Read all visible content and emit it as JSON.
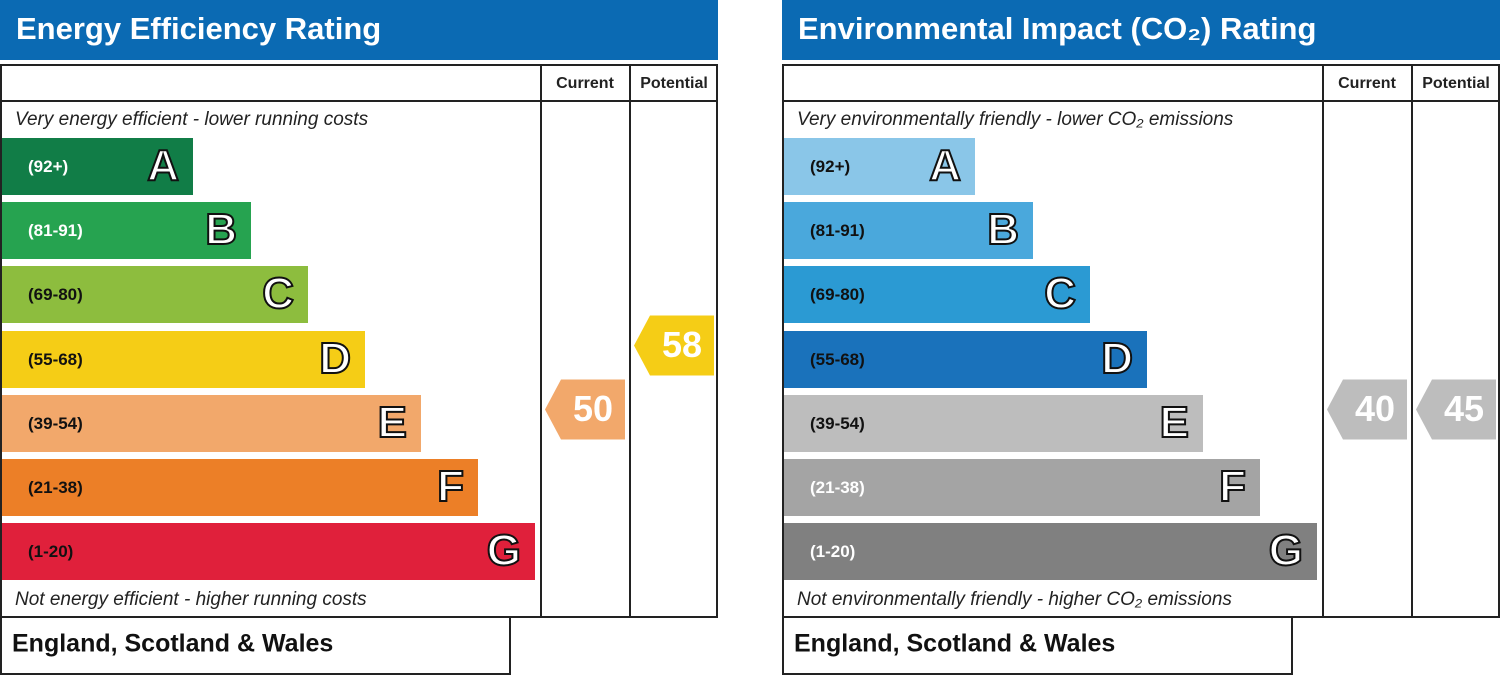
{
  "panels": [
    {
      "title": "Energy Efficiency Rating",
      "headers": [
        "Current",
        "Potential"
      ],
      "top_note": "Very energy efficient - lower running costs",
      "bottom_note": "Not energy efficient - higher running costs",
      "footer": "England, Scotland & Wales",
      "bands": [
        {
          "range": "(92+)",
          "letter": "A",
          "color": "#117d47",
          "text_color": "#ffffff"
        },
        {
          "range": "(81-91)",
          "letter": "B",
          "color": "#26a350",
          "text_color": "#ffffff"
        },
        {
          "range": "(69-80)",
          "letter": "C",
          "color": "#8dbd3e",
          "text_color": "#111111"
        },
        {
          "range": "(55-68)",
          "letter": "D",
          "color": "#f5cd16",
          "text_color": "#111111"
        },
        {
          "range": "(39-54)",
          "letter": "E",
          "color": "#f2a86b",
          "text_color": "#111111"
        },
        {
          "range": "(21-38)",
          "letter": "F",
          "color": "#ec7f27",
          "text_color": "#111111"
        },
        {
          "range": "(1-20)",
          "letter": "G",
          "color": "#e0203b",
          "text_color": "#111111"
        }
      ],
      "current": 50,
      "potential": 58
    },
    {
      "title": "Environmental Impact (CO₂) Rating",
      "headers": [
        "Current",
        "Potential"
      ],
      "top_note": "Very environmentally friendly - lower CO₂ emissions",
      "bottom_note": "Not environmentally friendly - higher CO₂ emissions",
      "footer": "England, Scotland & Wales",
      "bands": [
        {
          "range": "(92+)",
          "letter": "A",
          "color": "#8ac6e8",
          "text_color": "#111111"
        },
        {
          "range": "(81-91)",
          "letter": "B",
          "color": "#4aa8dc",
          "text_color": "#111111"
        },
        {
          "range": "(69-80)",
          "letter": "C",
          "color": "#2b9ad3",
          "text_color": "#111111"
        },
        {
          "range": "(55-68)",
          "letter": "D",
          "color": "#1a72bb",
          "text_color": "#111111"
        },
        {
          "range": "(39-54)",
          "letter": "E",
          "color": "#bdbdbd",
          "text_color": "#111111"
        },
        {
          "range": "(21-38)",
          "letter": "F",
          "color": "#a4a4a4",
          "text_color": "#ffffff"
        },
        {
          "range": "(1-20)",
          "letter": "G",
          "color": "#808080",
          "text_color": "#ffffff"
        }
      ],
      "current": 40,
      "potential": 45
    }
  ]
}
